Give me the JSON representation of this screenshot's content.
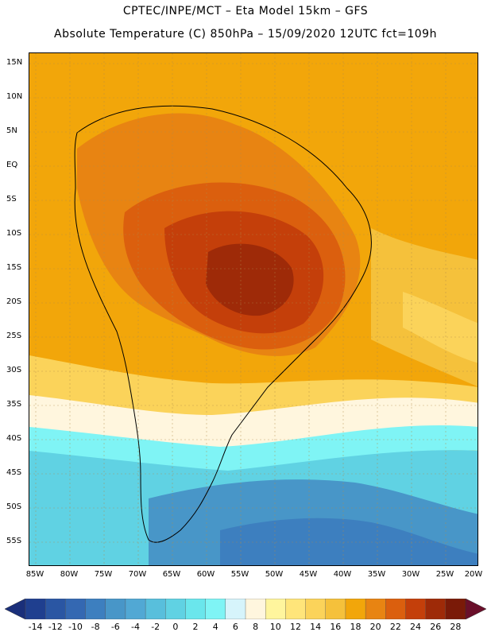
{
  "header": {
    "line1": "CPTEC/INPE/MCT –  Eta Model 15km – GFS",
    "line2": "Absolute Temperature (C) 850hPa – 15/09/2020 12UTC fct=109h"
  },
  "map": {
    "lat_labels": [
      "15N",
      "10N",
      "5N",
      "EQ",
      "5S",
      "10S",
      "15S",
      "20S",
      "25S",
      "30S",
      "35S",
      "40S",
      "45S",
      "50S",
      "55S"
    ],
    "lon_labels": [
      "85W",
      "80W",
      "75W",
      "70W",
      "65W",
      "60W",
      "55W",
      "50W",
      "45W",
      "40W",
      "35W",
      "30W",
      "25W",
      "20W"
    ],
    "lat_range": [
      17,
      -58
    ],
    "lon_range": [
      -86,
      -20
    ],
    "regions": [
      {
        "name": "tropics-base",
        "level": 18
      },
      {
        "name": "amazon-warm",
        "level": 20
      },
      {
        "name": "brazil-core",
        "level": 22
      },
      {
        "name": "brazil-hot",
        "level": 24
      },
      {
        "name": "mato-grosso-hottest",
        "level": 26
      },
      {
        "name": "south-atlantic-warm",
        "level": 14
      },
      {
        "name": "frontal-band",
        "level": 6
      },
      {
        "name": "southern-cold",
        "level": 2
      },
      {
        "name": "southern-colder",
        "level": -2
      },
      {
        "name": "southern-coldest",
        "level": -4
      }
    ]
  },
  "colorbar": {
    "labels": [
      "-14",
      "-12",
      "-10",
      "-8",
      "-6",
      "-4",
      "-2",
      "0",
      "2",
      "4",
      "6",
      "8",
      "10",
      "12",
      "14",
      "16",
      "18",
      "20",
      "22",
      "24",
      "26",
      "28"
    ],
    "colors": [
      "#1f3f8f",
      "#2a56a3",
      "#3468b2",
      "#3d7fbf",
      "#4896c8",
      "#51a8d4",
      "#58bfdc",
      "#60d2e3",
      "#6ae6ec",
      "#7ff4f5",
      "#d6f4fb",
      "#fff6de",
      "#fff59d",
      "#ffe57a",
      "#fbd35a",
      "#f5c13b",
      "#f2a60a",
      "#e88412",
      "#db5f0e",
      "#c43f0a",
      "#9e2a08",
      "#7a1a08"
    ],
    "low_arrow_color": "#1a2f7a",
    "high_arrow_color": "#6a0f2a"
  }
}
